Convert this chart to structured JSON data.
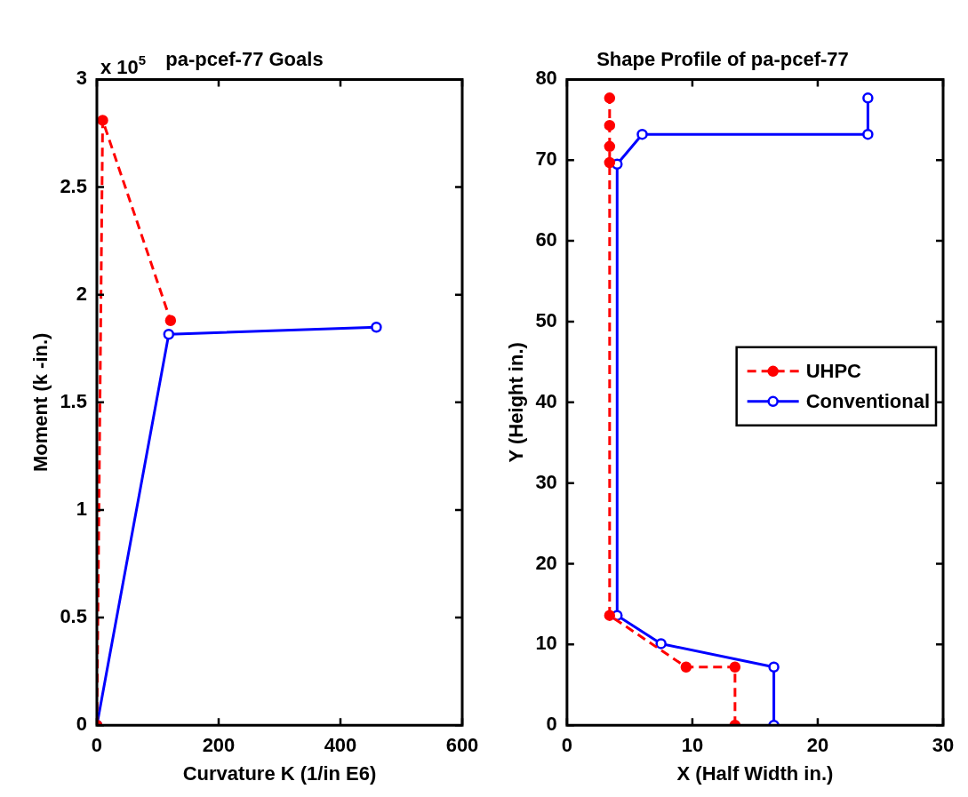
{
  "chart_data": [
    {
      "type": "line",
      "title": "pa-pcef-77 Goals",
      "xlabel": "Curvature K (1/in E6)",
      "ylabel": "Moment (k -in.)",
      "annotations": [
        "x 10$^{5}$"
      ],
      "xlim": [
        0,
        600
      ],
      "xticks": [
        0,
        200,
        400,
        600
      ],
      "ylim": [
        0,
        3
      ],
      "yticks": [
        0,
        0.5,
        1,
        1.5,
        2,
        2.5,
        3
      ],
      "marker": "circle",
      "grid": false,
      "legend": false,
      "series": [
        {
          "color": "#ff0000",
          "line_style": "dashed",
          "x": [
            0,
            9.5,
            121
          ],
          "values": [
            0,
            2.81,
            1.88
          ]
        },
        {
          "color": "#0000ff",
          "line_style": "solid",
          "x": [
            0,
            118,
            459
          ],
          "values": [
            0,
            1.816,
            1.849
          ]
        }
      ]
    },
    {
      "type": "line",
      "title": "Shape Profile of pa-pcef-77",
      "xlabel": "X (Half Width in.)",
      "ylabel": "Y (Height in.)",
      "xlim": [
        0,
        30
      ],
      "xticks": [
        0,
        10,
        20,
        30
      ],
      "ylim": [
        0,
        80
      ],
      "yticks": [
        0,
        10,
        20,
        30,
        40,
        50,
        60,
        70,
        80
      ],
      "marker": "circle",
      "grid": false,
      "legend": "right",
      "series": [
        {
          "name": "UHPC",
          "color": "#ff0000",
          "line_style": "dashed",
          "x": [
            13.4,
            13.4,
            9.5,
            3.4,
            3.4,
            3.4,
            3.4,
            3.4
          ],
          "values": [
            0,
            7.2,
            7.2,
            13.6,
            69.7,
            71.7,
            74.3,
            77.7
          ]
        },
        {
          "name": "Conventional",
          "color": "#0000ff",
          "line_style": "solid",
          "x": [
            16.5,
            16.5,
            7.5,
            4.0,
            4.0,
            6.0,
            24.0,
            24.0
          ],
          "values": [
            0,
            7.2,
            10.1,
            13.6,
            69.5,
            73.2,
            73.2,
            77.7
          ]
        }
      ]
    }
  ]
}
